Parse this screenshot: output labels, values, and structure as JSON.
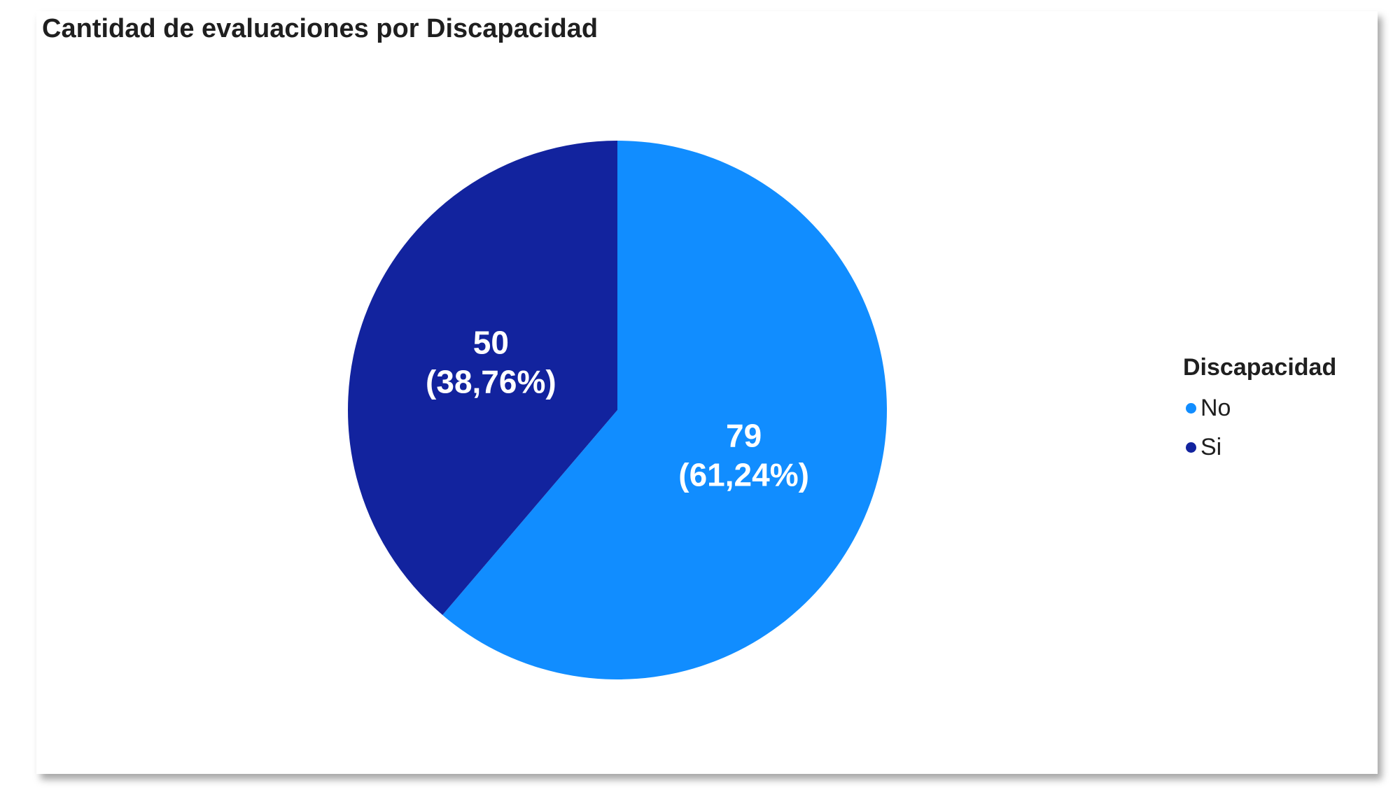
{
  "chart_data": {
    "type": "pie",
    "title": "Cantidad de evaluaciones por Discapacidad",
    "legend_title": "Discapacidad",
    "legend_position": "right",
    "slices": [
      {
        "label": "No",
        "value": 79,
        "percent_label": "(61,24%)",
        "color": "#118dff"
      },
      {
        "label": "Si",
        "value": 50,
        "percent_label": "(38,76%)",
        "color": "#12239e"
      }
    ]
  }
}
